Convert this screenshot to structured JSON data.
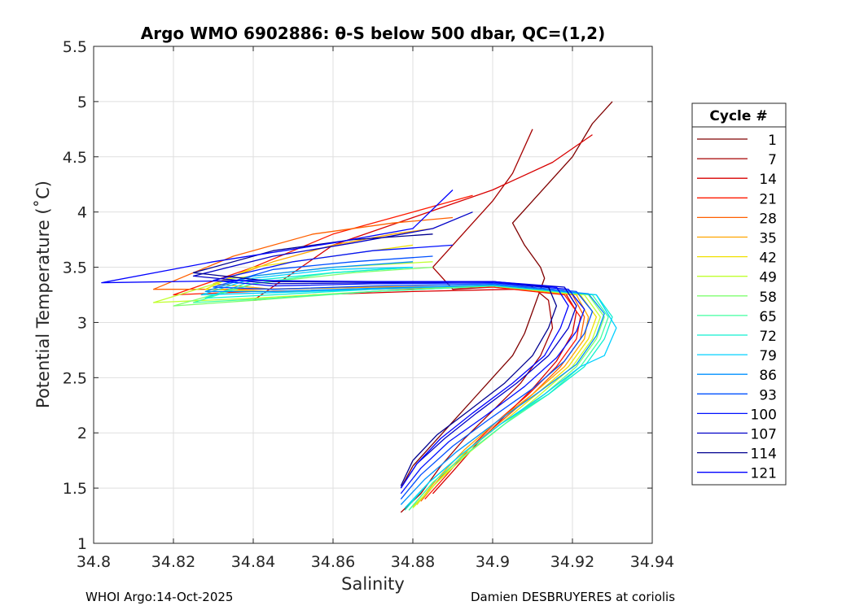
{
  "chart_data": {
    "type": "line",
    "title": "Argo WMO 6902886: θ-S below 500 dbar,  QC=(1,2)",
    "xlabel": "Salinity",
    "ylabel": "Potential Temperature (˚C)",
    "xlim": [
      34.8,
      34.94
    ],
    "ylim": [
      1,
      5.5
    ],
    "xticks": [
      34.8,
      34.82,
      34.84,
      34.86,
      34.88,
      34.9,
      34.92,
      34.94
    ],
    "xtick_labels": [
      "34.8",
      "34.82",
      "34.84",
      "34.86",
      "34.88",
      "34.9",
      "34.92",
      "34.94"
    ],
    "yticks": [
      1,
      1.5,
      2,
      2.5,
      3,
      3.5,
      4,
      4.5,
      5,
      5.5
    ],
    "ytick_labels": [
      "1",
      "1.5",
      "2",
      "2.5",
      "3",
      "3.5",
      "4",
      "4.5",
      "5",
      "5.5"
    ],
    "grid": true,
    "legend": {
      "title": "Cycle #",
      "placement": "outside-right",
      "entries": [
        {
          "label": "1",
          "color": "#800000"
        },
        {
          "label": "7",
          "color": "#a50000"
        },
        {
          "label": "14",
          "color": "#d80000"
        },
        {
          "label": "21",
          "color": "#ff1a00"
        },
        {
          "label": "28",
          "color": "#ff6000"
        },
        {
          "label": "35",
          "color": "#ffa500"
        },
        {
          "label": "42",
          "color": "#f0e000"
        },
        {
          "label": "49",
          "color": "#c0ff30"
        },
        {
          "label": "58",
          "color": "#80ff70"
        },
        {
          "label": "65",
          "color": "#40ffa0"
        },
        {
          "label": "72",
          "color": "#10f0d0"
        },
        {
          "label": "79",
          "color": "#00d0ff"
        },
        {
          "label": "86",
          "color": "#0090ff"
        },
        {
          "label": "93",
          "color": "#0050ff"
        },
        {
          "label": "100",
          "color": "#0010ff"
        },
        {
          "label": "107",
          "color": "#0000c8"
        },
        {
          "label": "114",
          "color": "#000090"
        },
        {
          "label": "121",
          "color": "#0000ff"
        }
      ]
    },
    "series": [
      {
        "name": "1",
        "x": [
          34.877,
          34.88,
          34.885,
          34.89,
          34.895,
          34.9,
          34.905,
          34.908,
          34.91,
          34.912,
          34.913,
          34.912,
          34.908,
          34.905,
          34.91,
          34.915,
          34.92,
          34.925,
          34.93
        ],
        "y": [
          1.5,
          1.7,
          1.9,
          2.1,
          2.3,
          2.5,
          2.7,
          2.9,
          3.1,
          3.3,
          3.4,
          3.5,
          3.7,
          3.9,
          4.1,
          4.3,
          4.5,
          4.8,
          5.0
        ]
      },
      {
        "name": "7",
        "x": [
          34.877,
          34.882,
          34.887,
          34.893,
          34.9,
          34.907,
          34.912,
          34.915,
          34.914,
          34.91,
          34.9,
          34.89,
          34.885,
          34.89,
          34.895,
          34.9,
          34.905,
          34.91
        ],
        "y": [
          1.28,
          1.45,
          1.7,
          1.95,
          2.2,
          2.45,
          2.7,
          2.95,
          3.2,
          3.32,
          3.32,
          3.3,
          3.5,
          3.7,
          3.9,
          4.1,
          4.35,
          4.75
        ]
      },
      {
        "name": "14",
        "x": [
          34.885,
          34.89,
          34.896,
          34.903,
          34.91,
          34.916,
          34.92,
          34.921,
          34.918,
          34.905,
          34.88,
          34.855,
          34.84,
          34.86,
          34.88,
          34.9,
          34.915,
          34.925
        ],
        "y": [
          1.45,
          1.65,
          1.9,
          2.15,
          2.4,
          2.65,
          2.9,
          3.1,
          3.28,
          3.3,
          3.28,
          3.25,
          3.2,
          3.7,
          3.95,
          4.2,
          4.45,
          4.7
        ]
      },
      {
        "name": "21",
        "x": [
          34.883,
          34.888,
          34.894,
          34.901,
          34.909,
          34.916,
          34.921,
          34.922,
          34.918,
          34.9,
          34.87,
          34.84,
          34.82,
          34.84,
          34.86,
          34.88,
          34.895
        ],
        "y": [
          1.4,
          1.6,
          1.85,
          2.1,
          2.35,
          2.6,
          2.85,
          3.05,
          3.25,
          3.32,
          3.3,
          3.28,
          3.25,
          3.5,
          3.8,
          4.0,
          4.15
        ]
      },
      {
        "name": "28",
        "x": [
          34.882,
          34.887,
          34.894,
          34.902,
          34.91,
          34.917,
          34.922,
          34.923,
          34.92,
          34.9,
          34.87,
          34.84,
          34.815,
          34.835,
          34.855,
          34.875,
          34.89
        ],
        "y": [
          1.38,
          1.6,
          1.85,
          2.1,
          2.35,
          2.6,
          2.85,
          3.05,
          3.25,
          3.33,
          3.32,
          3.3,
          3.3,
          3.6,
          3.8,
          3.9,
          3.95
        ]
      },
      {
        "name": "35",
        "x": [
          34.881,
          34.886,
          34.893,
          34.901,
          34.91,
          34.918,
          34.923,
          34.924,
          34.921,
          34.9,
          34.87,
          34.845,
          34.83,
          34.845,
          34.86,
          34.875,
          34.885
        ],
        "y": [
          1.35,
          1.58,
          1.85,
          2.1,
          2.35,
          2.6,
          2.85,
          3.05,
          3.25,
          3.33,
          3.32,
          3.3,
          3.35,
          3.55,
          3.7,
          3.8,
          3.85
        ]
      },
      {
        "name": "42",
        "x": [
          34.88,
          34.886,
          34.893,
          34.902,
          34.911,
          34.919,
          34.924,
          34.926,
          34.922,
          34.9,
          34.87,
          34.845,
          34.828,
          34.84,
          34.86,
          34.88
        ],
        "y": [
          1.33,
          1.55,
          1.82,
          2.08,
          2.35,
          2.6,
          2.85,
          3.05,
          3.25,
          3.33,
          3.3,
          3.28,
          3.3,
          3.5,
          3.6,
          3.7
        ]
      },
      {
        "name": "49",
        "x": [
          34.88,
          34.886,
          34.894,
          34.903,
          34.912,
          34.92,
          34.925,
          34.927,
          34.923,
          34.9,
          34.87,
          34.84,
          34.815,
          34.835,
          34.86,
          34.885
        ],
        "y": [
          1.32,
          1.55,
          1.82,
          2.08,
          2.35,
          2.6,
          2.85,
          3.05,
          3.25,
          3.33,
          3.28,
          3.22,
          3.18,
          3.4,
          3.5,
          3.55
        ]
      },
      {
        "name": "58",
        "x": [
          34.879,
          34.885,
          34.893,
          34.903,
          34.913,
          34.921,
          34.926,
          34.928,
          34.924,
          34.9,
          34.87,
          34.84,
          34.82,
          34.84,
          34.865,
          34.885
        ],
        "y": [
          1.3,
          1.55,
          1.8,
          2.08,
          2.35,
          2.6,
          2.85,
          3.05,
          3.25,
          3.33,
          3.28,
          3.2,
          3.15,
          3.35,
          3.45,
          3.5
        ]
      },
      {
        "name": "65",
        "x": [
          34.879,
          34.885,
          34.893,
          34.903,
          34.914,
          34.922,
          34.927,
          34.929,
          34.925,
          34.9,
          34.87,
          34.845,
          34.825,
          34.84,
          34.86,
          34.88
        ],
        "y": [
          1.3,
          1.55,
          1.8,
          2.08,
          2.35,
          2.6,
          2.85,
          3.05,
          3.25,
          3.33,
          3.28,
          3.22,
          3.18,
          3.35,
          3.45,
          3.5
        ]
      },
      {
        "name": "72",
        "x": [
          34.878,
          34.884,
          34.892,
          34.902,
          34.914,
          34.923,
          34.928,
          34.93,
          34.926,
          34.9,
          34.87,
          34.845,
          34.828,
          34.84,
          34.86,
          34.88
        ],
        "y": [
          1.3,
          1.55,
          1.8,
          2.08,
          2.35,
          2.6,
          2.85,
          3.05,
          3.25,
          3.34,
          3.3,
          3.25,
          3.22,
          3.38,
          3.45,
          3.5
        ]
      },
      {
        "name": "79",
        "x": [
          34.878,
          34.884,
          34.892,
          34.902,
          34.913,
          34.922,
          34.928,
          34.931,
          34.926,
          34.9,
          34.87,
          34.845,
          34.827,
          34.84,
          34.86,
          34.88
        ],
        "y": [
          1.32,
          1.55,
          1.8,
          2.08,
          2.35,
          2.6,
          2.7,
          2.95,
          3.25,
          3.34,
          3.3,
          3.27,
          3.25,
          3.4,
          3.48,
          3.5
        ]
      },
      {
        "name": "86",
        "x": [
          34.877,
          34.883,
          34.891,
          34.901,
          34.912,
          34.921,
          34.926,
          34.928,
          34.924,
          34.9,
          34.87,
          34.845,
          34.828,
          34.84,
          34.86,
          34.88
        ],
        "y": [
          1.35,
          1.58,
          1.83,
          2.1,
          2.38,
          2.62,
          2.88,
          3.08,
          3.26,
          3.34,
          3.31,
          3.28,
          3.28,
          3.42,
          3.5,
          3.55
        ]
      },
      {
        "name": "93",
        "x": [
          34.877,
          34.882,
          34.89,
          34.899,
          34.91,
          34.918,
          34.923,
          34.925,
          34.921,
          34.9,
          34.87,
          34.845,
          34.83,
          34.845,
          34.865,
          34.885
        ],
        "y": [
          1.4,
          1.62,
          1.88,
          2.12,
          2.4,
          2.65,
          2.9,
          3.1,
          3.28,
          3.35,
          3.33,
          3.3,
          3.32,
          3.48,
          3.55,
          3.6
        ]
      },
      {
        "name": "100",
        "x": [
          34.877,
          34.882,
          34.889,
          34.898,
          34.908,
          34.916,
          34.921,
          34.923,
          34.919,
          34.9,
          34.87,
          34.845,
          34.83,
          34.85,
          34.87,
          34.89
        ],
        "y": [
          1.45,
          1.68,
          1.92,
          2.15,
          2.42,
          2.68,
          2.92,
          3.12,
          3.3,
          3.36,
          3.35,
          3.33,
          3.38,
          3.55,
          3.65,
          3.7
        ]
      },
      {
        "name": "107",
        "x": [
          34.877,
          34.881,
          34.888,
          34.896,
          34.906,
          34.914,
          34.919,
          34.921,
          34.918,
          34.9,
          34.87,
          34.845,
          34.825,
          34.845,
          34.865,
          34.885,
          34.895
        ],
        "y": [
          1.5,
          1.72,
          1.95,
          2.18,
          2.45,
          2.7,
          2.95,
          3.15,
          3.32,
          3.37,
          3.36,
          3.35,
          3.42,
          3.6,
          3.72,
          3.85,
          4.0
        ]
      },
      {
        "name": "114",
        "x": [
          34.877,
          34.88,
          34.886,
          34.894,
          34.903,
          34.91,
          34.914,
          34.916,
          34.914,
          34.9,
          34.87,
          34.845,
          34.825,
          34.845,
          34.865,
          34.885
        ],
        "y": [
          1.52,
          1.75,
          1.98,
          2.2,
          2.45,
          2.7,
          2.95,
          3.15,
          3.32,
          3.37,
          3.37,
          3.37,
          3.45,
          3.65,
          3.75,
          3.8
        ]
      },
      {
        "name": "121",
        "x": [
          34.877,
          34.881,
          34.887,
          34.895,
          34.905,
          34.913,
          34.917,
          34.919,
          34.916,
          34.9,
          34.87,
          34.84,
          34.802,
          34.83,
          34.86,
          34.88,
          34.89
        ],
        "y": [
          1.5,
          1.72,
          1.95,
          2.18,
          2.45,
          2.7,
          2.95,
          3.15,
          3.32,
          3.37,
          3.37,
          3.38,
          3.36,
          3.55,
          3.72,
          3.85,
          4.2
        ]
      }
    ]
  },
  "footer": {
    "left": "WHOI Argo:14-Oct-2025",
    "right": "Damien DESBRUYERES at coriolis"
  }
}
